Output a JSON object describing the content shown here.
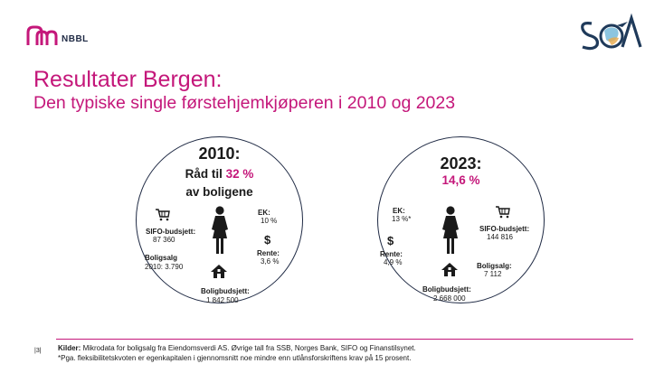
{
  "header": {
    "org_logo_text": "NBBL",
    "brand_colors": {
      "accent": "#c4177a",
      "navy": "#1f2a44"
    }
  },
  "title": {
    "line1": "Resultater Bergen:",
    "line2": "Den typiske single førstehjemkjøperen i 2010 og 2023"
  },
  "circle_2010": {
    "year": "2010:",
    "line1_prefix": "Råd til ",
    "line1_pct": "32 %",
    "line2": "av boligene",
    "sifo_label": "SIFO-budsjett:",
    "sifo_value": "87 360",
    "ek_label": "EK:",
    "ek_value": "10 %",
    "rente_label": "Rente:",
    "rente_value": "3,6 %",
    "salg_label": "Boligsalg",
    "salg_value": "2010: 3.790",
    "budsjett_label": "Boligbudsjett:",
    "budsjett_value": "1 842 500"
  },
  "circle_2023": {
    "year": "2023:",
    "pct": "14,6 %",
    "ek_label": "EK:",
    "ek_value": "13 %*",
    "sifo_label": "SIFO-budsjett:",
    "sifo_value": "144 816",
    "rente_label": "Rente:",
    "rente_value": "4,9 %",
    "salg_label": "Boligsalg:",
    "salg_value": "7 112",
    "budsjett_label": "Boligbudsjett:",
    "budsjett_value": "2 668 000"
  },
  "footer": {
    "page": "|3|",
    "sources_label": "Kilder:",
    "sources_text": " Mikrodata for boligsalg fra Eiendomsverdi AS. Øvrige tall fra SSB, Norges Bank, SIFO og Finanstilsynet.",
    "note": "*Pga. fleksibilitetskvoten er egenkapitalen i gjennomsnitt noe mindre enn utlånsforskriftens krav på 15 prosent."
  }
}
